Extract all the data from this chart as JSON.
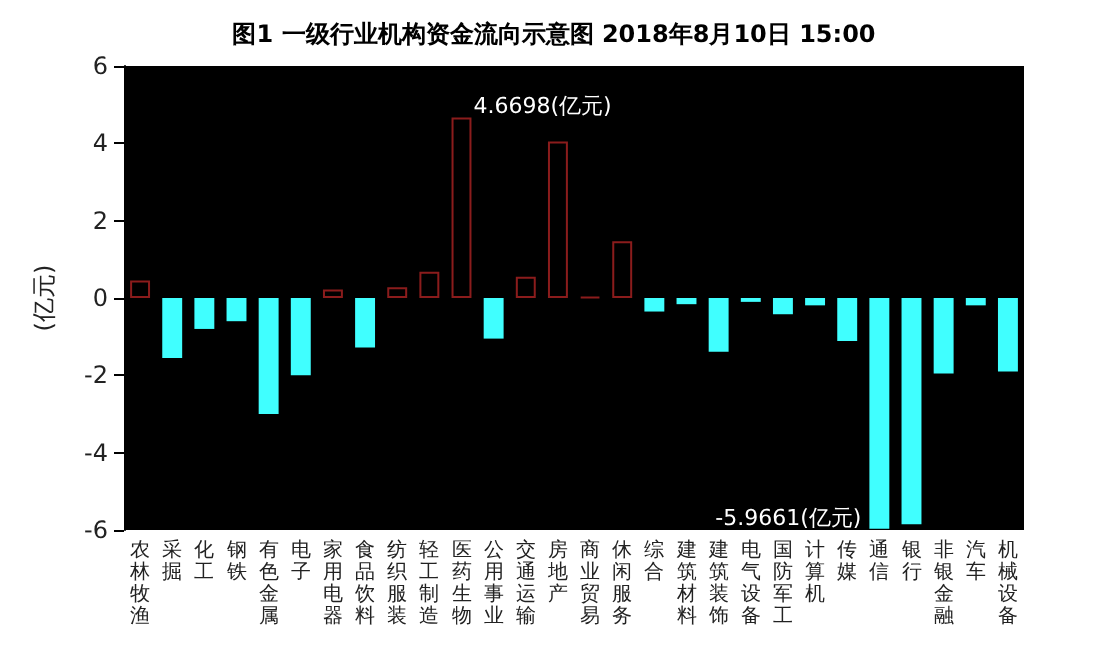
{
  "chart_data": {
    "type": "bar",
    "title": "图1 一级行业机构资金流向示意图 2018年8月10日 15:00",
    "ylabel": "(亿元)",
    "categories": [
      "农林牧渔",
      "采掘",
      "化工",
      "钢铁",
      "有色金属",
      "电子",
      "家用电器",
      "食品饮料",
      "纺织服装",
      "轻工制造",
      "医药生物",
      "公用事业",
      "交通运输",
      "房地产",
      "商业贸易",
      "休闲服务",
      "综合",
      "建筑材料",
      "建筑装饰",
      "电气设备",
      "国防军工",
      "计算机",
      "传媒",
      "通信",
      "银行",
      "非银金融",
      "汽车",
      "机械设备"
    ],
    "values": [
      0.45,
      -1.55,
      -0.8,
      -0.6,
      -3.0,
      -2.0,
      0.22,
      -1.28,
      0.28,
      0.68,
      4.6698,
      -1.05,
      0.55,
      4.05,
      0.03,
      1.47,
      -0.35,
      -0.16,
      -1.39,
      -0.1,
      -0.42,
      -0.19,
      -1.11,
      -5.9661,
      -5.85,
      -1.95,
      -0.19,
      -1.9
    ],
    "colors": [
      "#8b1c1c",
      "#40ffff",
      "#40ffff",
      "#40ffff",
      "#40ffff",
      "#40ffff",
      "#8b1c1c",
      "#40ffff",
      "#8b1c1c",
      "#8b1c1c",
      "#8b1c1c",
      "#40ffff",
      "#8b1c1c",
      "#8b1c1c",
      "#8b1c1c",
      "#8b1c1c",
      "#40ffff",
      "#40ffff",
      "#40ffff",
      "#40ffff",
      "#40ffff",
      "#40ffff",
      "#40ffff",
      "#40ffff",
      "#40ffff",
      "#40ffff",
      "#40ffff",
      "#40ffff"
    ],
    "ylim": [
      -6,
      6
    ],
    "yticks": [
      -6,
      -4,
      -2,
      0,
      2,
      4,
      6
    ],
    "grid": false,
    "annotations": [
      {
        "text": "4.6698(亿元)",
        "x": "医药生物",
        "y": 4.6698
      },
      {
        "text": "-5.9661(亿元)",
        "x": "通信",
        "y": -5.9661
      }
    ]
  }
}
